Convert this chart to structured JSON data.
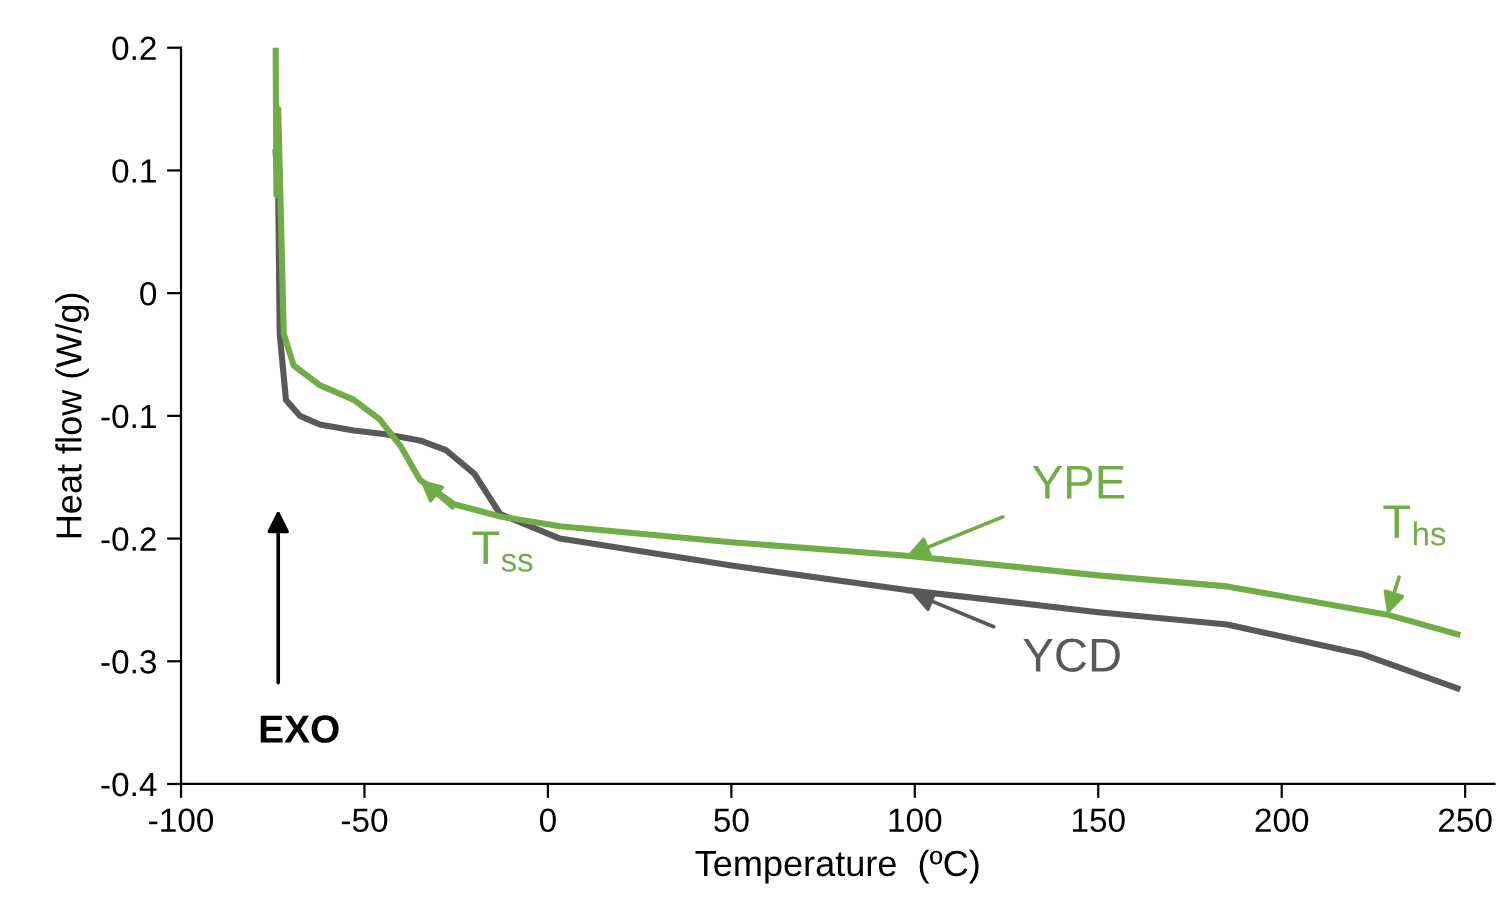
{
  "chart_data": {
    "type": "line",
    "xlabel": "Temperature  (ºC)",
    "ylabel": "Heat flow (W/g)",
    "xlim": [
      -100,
      258
    ],
    "xticks": [
      -100,
      -50,
      0,
      50,
      100,
      150,
      200,
      250
    ],
    "ylim": [
      -0.4,
      0.2
    ],
    "yticks": [
      0.2,
      0.1,
      0,
      -0.1,
      -0.2,
      -0.3,
      -0.4
    ],
    "grid": false,
    "legend": false,
    "marker": "none",
    "line_style": "solid",
    "series": [
      {
        "color": "#595959",
        "x": [
          -74.2,
          -73.5,
          -73.1,
          -71.4,
          -67.6,
          -62.2,
          -52.9,
          -44.2,
          -34.9,
          -27.8,
          -20.1,
          -13.0,
          3.3,
          50,
          97.8,
          150,
          185.1,
          221.7,
          247.9
        ],
        "values": [
          0.115,
          0.08,
          -0.033,
          -0.087,
          -0.1,
          -0.107,
          -0.112,
          -0.115,
          -0.12,
          -0.128,
          -0.147,
          -0.18,
          -0.2,
          -0.222,
          -0.242,
          -0.26,
          -0.27,
          -0.294,
          -0.322
        ]
      },
      {
        "color": "#70ad47",
        "x": [
          -74.2,
          -74.0,
          -73.5,
          -73.0,
          -72.0,
          -69.3,
          -62.2,
          -52.9,
          -45.8,
          -40.3,
          -34.9,
          -25.6,
          -13.0,
          3.3,
          50,
          97.8,
          150,
          185.1,
          228.8,
          247.9
        ],
        "values": [
          0.2,
          0.08,
          0.15,
          0.09,
          -0.033,
          -0.059,
          -0.075,
          -0.087,
          -0.103,
          -0.124,
          -0.152,
          -0.172,
          -0.182,
          -0.19,
          -0.203,
          -0.214,
          -0.23,
          -0.239,
          -0.262,
          -0.278
        ]
      }
    ],
    "annotations": [
      {
        "text": "YPE",
        "x": 97.8,
        "y": -0.214
      },
      {
        "text": "YCD",
        "x": 99,
        "y": -0.244
      },
      {
        "text": "T$_{ss}$",
        "x": -34.9,
        "y": -0.152
      },
      {
        "text": "T$_{hs}$",
        "x": 228.8,
        "y": -0.262
      },
      "EXO"
    ]
  }
}
